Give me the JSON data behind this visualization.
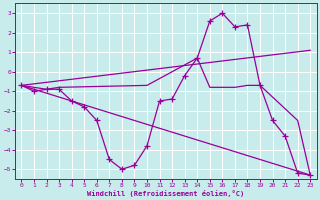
{
  "xlabel": "Windchill (Refroidissement éolien,°C)",
  "bg_color": "#c8ecec",
  "line_color": "#990099",
  "grid_color": "#aadddd",
  "xlim": [
    -0.5,
    23.5
  ],
  "ylim": [
    -5.5,
    3.5
  ],
  "xticks": [
    0,
    1,
    2,
    3,
    4,
    5,
    6,
    7,
    8,
    9,
    10,
    11,
    12,
    13,
    14,
    15,
    16,
    17,
    18,
    19,
    20,
    21,
    22,
    23
  ],
  "yticks": [
    -5,
    -4,
    -3,
    -2,
    -1,
    0,
    1,
    2,
    3
  ],
  "line1_x": [
    0,
    1,
    2,
    3,
    4,
    5,
    6,
    7,
    8,
    9,
    10,
    11,
    12,
    13,
    14,
    15,
    16,
    17,
    18,
    19,
    20,
    21,
    22,
    23
  ],
  "line1_y": [
    -0.7,
    -1.0,
    -0.9,
    -0.9,
    -1.5,
    -1.8,
    -2.5,
    -4.5,
    -5.0,
    -4.8,
    -3.8,
    -1.5,
    -1.4,
    -0.2,
    0.7,
    2.6,
    3.0,
    2.3,
    2.4,
    -0.7,
    -2.5,
    -3.3,
    -5.2,
    -5.3
  ],
  "line2_x": [
    0,
    2,
    3,
    10,
    14,
    15,
    16,
    17,
    18,
    19,
    22,
    23
  ],
  "line2_y": [
    -0.7,
    -0.9,
    -0.8,
    -0.7,
    0.7,
    -0.8,
    -0.8,
    -0.8,
    -0.7,
    -0.7,
    -2.5,
    -5.3
  ],
  "line3_x": [
    0,
    23
  ],
  "line3_y": [
    -0.7,
    1.1
  ],
  "line4_x": [
    0,
    23
  ],
  "line4_y": [
    -0.7,
    -5.3
  ]
}
